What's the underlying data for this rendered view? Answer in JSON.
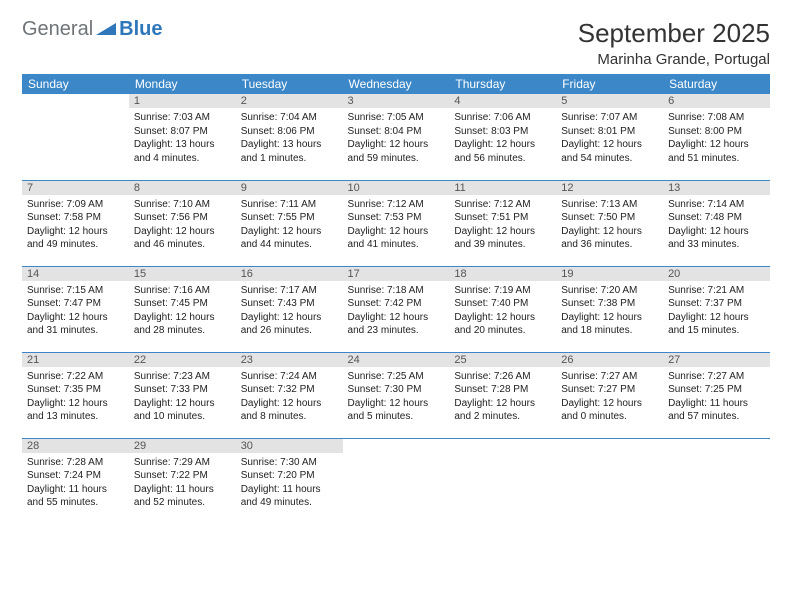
{
  "brand": {
    "part1": "General",
    "part2": "Blue"
  },
  "title": "September 2025",
  "location": "Marinha Grande, Portugal",
  "colors": {
    "header_bg": "#3b87c8",
    "header_fg": "#ffffff",
    "daynum_bg": "#e3e3e3",
    "daynum_fg": "#555555",
    "row_divider": "#3b87c8",
    "logo_gray": "#6f7478",
    "logo_blue": "#2f77bb"
  },
  "weekdays": [
    "Sunday",
    "Monday",
    "Tuesday",
    "Wednesday",
    "Thursday",
    "Friday",
    "Saturday"
  ],
  "weeks": [
    [
      {
        "empty": true
      },
      {
        "day": "1",
        "sunrise": "Sunrise: 7:03 AM",
        "sunset": "Sunset: 8:07 PM",
        "daylight": "Daylight: 13 hours and 4 minutes."
      },
      {
        "day": "2",
        "sunrise": "Sunrise: 7:04 AM",
        "sunset": "Sunset: 8:06 PM",
        "daylight": "Daylight: 13 hours and 1 minutes."
      },
      {
        "day": "3",
        "sunrise": "Sunrise: 7:05 AM",
        "sunset": "Sunset: 8:04 PM",
        "daylight": "Daylight: 12 hours and 59 minutes."
      },
      {
        "day": "4",
        "sunrise": "Sunrise: 7:06 AM",
        "sunset": "Sunset: 8:03 PM",
        "daylight": "Daylight: 12 hours and 56 minutes."
      },
      {
        "day": "5",
        "sunrise": "Sunrise: 7:07 AM",
        "sunset": "Sunset: 8:01 PM",
        "daylight": "Daylight: 12 hours and 54 minutes."
      },
      {
        "day": "6",
        "sunrise": "Sunrise: 7:08 AM",
        "sunset": "Sunset: 8:00 PM",
        "daylight": "Daylight: 12 hours and 51 minutes."
      }
    ],
    [
      {
        "day": "7",
        "sunrise": "Sunrise: 7:09 AM",
        "sunset": "Sunset: 7:58 PM",
        "daylight": "Daylight: 12 hours and 49 minutes."
      },
      {
        "day": "8",
        "sunrise": "Sunrise: 7:10 AM",
        "sunset": "Sunset: 7:56 PM",
        "daylight": "Daylight: 12 hours and 46 minutes."
      },
      {
        "day": "9",
        "sunrise": "Sunrise: 7:11 AM",
        "sunset": "Sunset: 7:55 PM",
        "daylight": "Daylight: 12 hours and 44 minutes."
      },
      {
        "day": "10",
        "sunrise": "Sunrise: 7:12 AM",
        "sunset": "Sunset: 7:53 PM",
        "daylight": "Daylight: 12 hours and 41 minutes."
      },
      {
        "day": "11",
        "sunrise": "Sunrise: 7:12 AM",
        "sunset": "Sunset: 7:51 PM",
        "daylight": "Daylight: 12 hours and 39 minutes."
      },
      {
        "day": "12",
        "sunrise": "Sunrise: 7:13 AM",
        "sunset": "Sunset: 7:50 PM",
        "daylight": "Daylight: 12 hours and 36 minutes."
      },
      {
        "day": "13",
        "sunrise": "Sunrise: 7:14 AM",
        "sunset": "Sunset: 7:48 PM",
        "daylight": "Daylight: 12 hours and 33 minutes."
      }
    ],
    [
      {
        "day": "14",
        "sunrise": "Sunrise: 7:15 AM",
        "sunset": "Sunset: 7:47 PM",
        "daylight": "Daylight: 12 hours and 31 minutes."
      },
      {
        "day": "15",
        "sunrise": "Sunrise: 7:16 AM",
        "sunset": "Sunset: 7:45 PM",
        "daylight": "Daylight: 12 hours and 28 minutes."
      },
      {
        "day": "16",
        "sunrise": "Sunrise: 7:17 AM",
        "sunset": "Sunset: 7:43 PM",
        "daylight": "Daylight: 12 hours and 26 minutes."
      },
      {
        "day": "17",
        "sunrise": "Sunrise: 7:18 AM",
        "sunset": "Sunset: 7:42 PM",
        "daylight": "Daylight: 12 hours and 23 minutes."
      },
      {
        "day": "18",
        "sunrise": "Sunrise: 7:19 AM",
        "sunset": "Sunset: 7:40 PM",
        "daylight": "Daylight: 12 hours and 20 minutes."
      },
      {
        "day": "19",
        "sunrise": "Sunrise: 7:20 AM",
        "sunset": "Sunset: 7:38 PM",
        "daylight": "Daylight: 12 hours and 18 minutes."
      },
      {
        "day": "20",
        "sunrise": "Sunrise: 7:21 AM",
        "sunset": "Sunset: 7:37 PM",
        "daylight": "Daylight: 12 hours and 15 minutes."
      }
    ],
    [
      {
        "day": "21",
        "sunrise": "Sunrise: 7:22 AM",
        "sunset": "Sunset: 7:35 PM",
        "daylight": "Daylight: 12 hours and 13 minutes."
      },
      {
        "day": "22",
        "sunrise": "Sunrise: 7:23 AM",
        "sunset": "Sunset: 7:33 PM",
        "daylight": "Daylight: 12 hours and 10 minutes."
      },
      {
        "day": "23",
        "sunrise": "Sunrise: 7:24 AM",
        "sunset": "Sunset: 7:32 PM",
        "daylight": "Daylight: 12 hours and 8 minutes."
      },
      {
        "day": "24",
        "sunrise": "Sunrise: 7:25 AM",
        "sunset": "Sunset: 7:30 PM",
        "daylight": "Daylight: 12 hours and 5 minutes."
      },
      {
        "day": "25",
        "sunrise": "Sunrise: 7:26 AM",
        "sunset": "Sunset: 7:28 PM",
        "daylight": "Daylight: 12 hours and 2 minutes."
      },
      {
        "day": "26",
        "sunrise": "Sunrise: 7:27 AM",
        "sunset": "Sunset: 7:27 PM",
        "daylight": "Daylight: 12 hours and 0 minutes."
      },
      {
        "day": "27",
        "sunrise": "Sunrise: 7:27 AM",
        "sunset": "Sunset: 7:25 PM",
        "daylight": "Daylight: 11 hours and 57 minutes."
      }
    ],
    [
      {
        "day": "28",
        "sunrise": "Sunrise: 7:28 AM",
        "sunset": "Sunset: 7:24 PM",
        "daylight": "Daylight: 11 hours and 55 minutes."
      },
      {
        "day": "29",
        "sunrise": "Sunrise: 7:29 AM",
        "sunset": "Sunset: 7:22 PM",
        "daylight": "Daylight: 11 hours and 52 minutes."
      },
      {
        "day": "30",
        "sunrise": "Sunrise: 7:30 AM",
        "sunset": "Sunset: 7:20 PM",
        "daylight": "Daylight: 11 hours and 49 minutes."
      },
      {
        "empty": true
      },
      {
        "empty": true
      },
      {
        "empty": true
      },
      {
        "empty": true
      }
    ]
  ]
}
